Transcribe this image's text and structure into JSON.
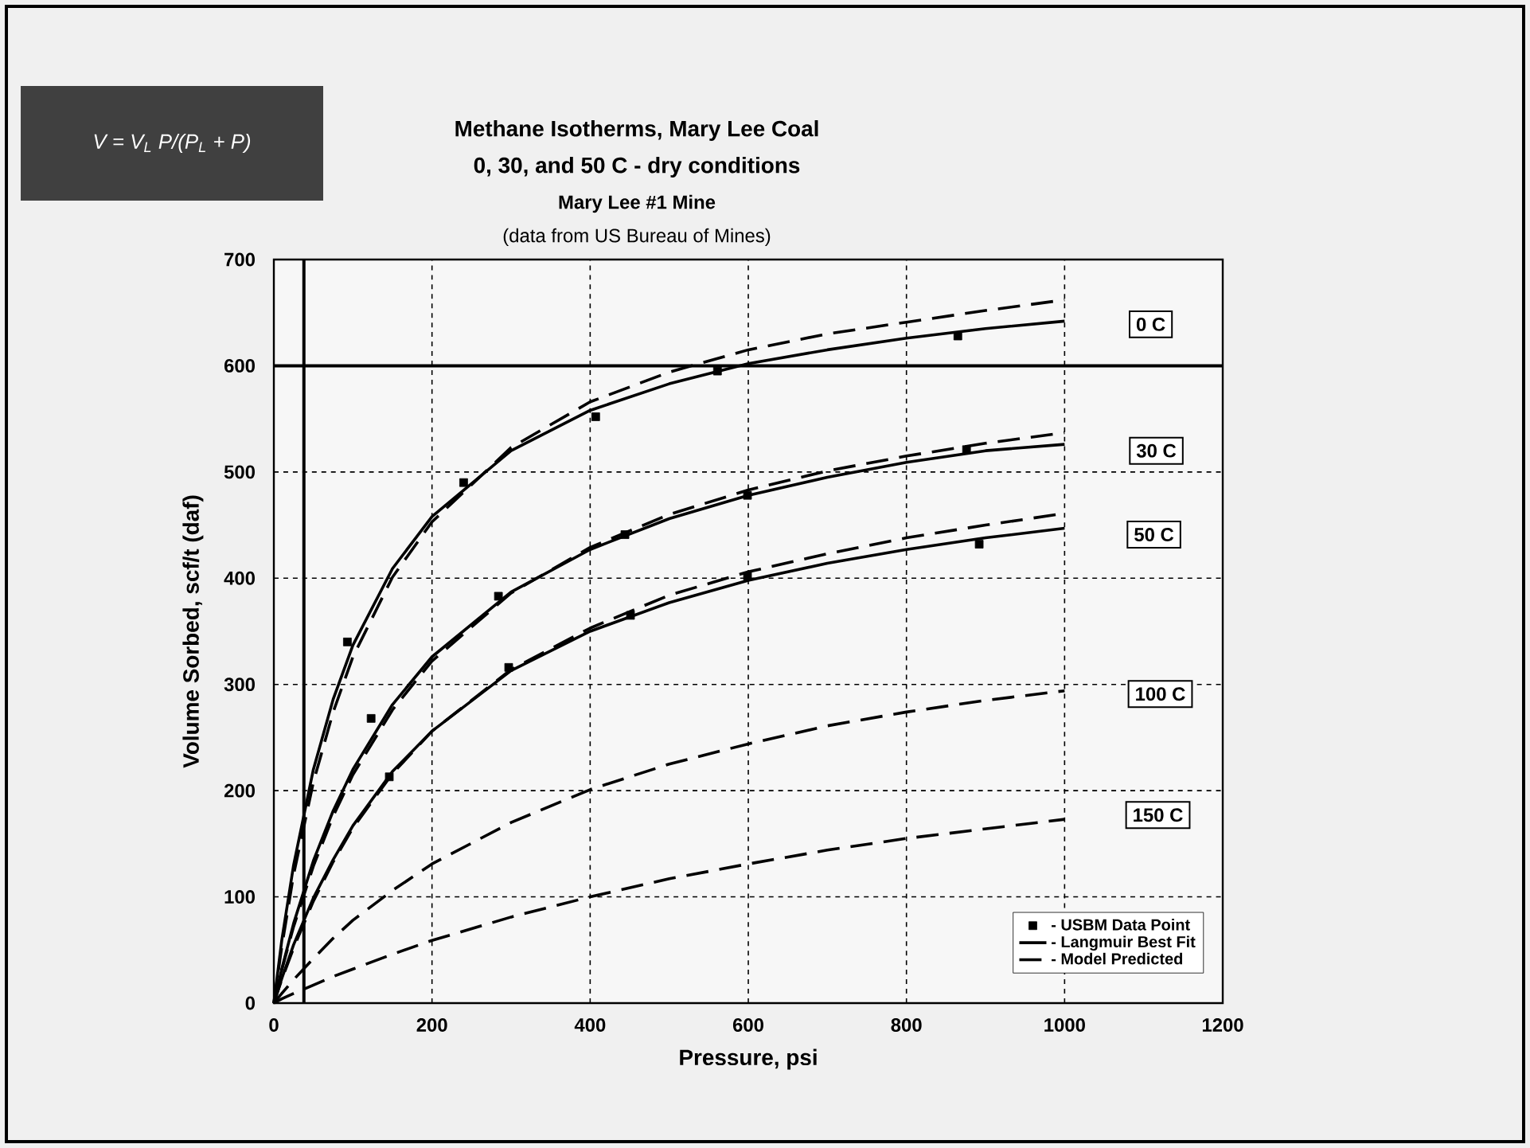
{
  "chart_data": {
    "type": "line",
    "title": "Methane Isotherms, Mary Lee Coal",
    "subtitle": "0, 30, and 50 C - dry conditions",
    "xlabel": "Pressure, psi",
    "ylabel": "Volume Sorbed, scf/t (daf)",
    "annotations": [
      "V = V$_{L}$ P/(P$_{L}$ + P)",
      "Mary Lee #1 Mine",
      "(data from US Bureau of Mines)",
      {
        "text": "0 C",
        "x": 1109,
        "y": 639
      },
      {
        "text": "30 C",
        "x": 1116,
        "y": 520
      },
      {
        "text": "50 C",
        "x": 1113,
        "y": 441
      },
      {
        "text": "100 C",
        "x": 1121,
        "y": 291
      },
      {
        "text": "150 C",
        "x": 1118,
        "y": 177
      }
    ],
    "xlim": [
      0,
      1200
    ],
    "ylim": [
      0,
      700
    ],
    "xticks": [
      0,
      200,
      400,
      600,
      800,
      1000,
      1200
    ],
    "yticks": [
      0,
      100,
      200,
      300,
      400,
      500,
      600,
      700
    ],
    "grid": true,
    "legend": "bottom right",
    "series": [
      {
        "name": "- USBM Data Point",
        "type": "scatter",
        "marker": "square",
        "color": "#000000",
        "x": [
          93,
          240,
          407,
          561,
          865
        ],
        "values": [
          340,
          490,
          552,
          595,
          628
        ]
      },
      {
        "type": "scatter",
        "marker": "square",
        "color": "#000000",
        "x": [
          123,
          284,
          444,
          599,
          876
        ],
        "values": [
          268,
          383,
          441,
          478,
          521
        ]
      },
      {
        "type": "scatter",
        "marker": "square",
        "color": "#000000",
        "x": [
          146,
          297,
          451,
          599,
          892
        ],
        "values": [
          213,
          316,
          365,
          402,
          432
        ]
      },
      {
        "name": "- Langmuir Best Fit",
        "type": "line",
        "line_style": "solid",
        "color": "#000000",
        "x": [
          0,
          10,
          25,
          50,
          75,
          100,
          150,
          200,
          300,
          400,
          500,
          600,
          700,
          800,
          900,
          1000
        ],
        "values": [
          0,
          59,
          130,
          220,
          286,
          337,
          409,
          458,
          520,
          558,
          583,
          602,
          615,
          626,
          635,
          642
        ]
      },
      {
        "type": "line",
        "line_style": "solid",
        "color": "#000000",
        "x": [
          0,
          10,
          25,
          50,
          75,
          100,
          150,
          200,
          300,
          400,
          500,
          600,
          700,
          800,
          900,
          1000
        ],
        "values": [
          0,
          32,
          75,
          134,
          181,
          220,
          281,
          326,
          387,
          427,
          456,
          478,
          495,
          509,
          520,
          526
        ]
      },
      {
        "type": "line",
        "line_style": "solid",
        "color": "#000000",
        "x": [
          0,
          10,
          25,
          50,
          75,
          100,
          150,
          200,
          300,
          400,
          500,
          600,
          700,
          800,
          900,
          1000
        ],
        "values": [
          0,
          23,
          55,
          99,
          135,
          167,
          218,
          256,
          313,
          350,
          377,
          398,
          414,
          427,
          438,
          447
        ]
      },
      {
        "name": "- Model Predicted",
        "type": "line",
        "line_style": "dashed",
        "color": "#000000",
        "x": [
          0,
          10,
          25,
          50,
          75,
          100,
          150,
          200,
          300,
          400,
          500,
          600,
          700,
          800,
          900,
          1000
        ],
        "values": [
          0,
          53,
          121,
          208,
          274,
          326,
          401,
          453,
          523,
          566,
          594,
          615,
          630,
          641,
          652,
          662
        ]
      },
      {
        "type": "line",
        "line_style": "dashed",
        "color": "#000000",
        "x": [
          0,
          10,
          25,
          50,
          75,
          100,
          150,
          200,
          300,
          400,
          500,
          600,
          700,
          800,
          900,
          1000
        ],
        "values": [
          0,
          31,
          72,
          129,
          176,
          215,
          276,
          322,
          386,
          429,
          460,
          483,
          501,
          515,
          527,
          537
        ]
      },
      {
        "type": "line",
        "line_style": "dashed",
        "color": "#000000",
        "x": [
          0,
          10,
          25,
          50,
          75,
          100,
          150,
          200,
          300,
          400,
          500,
          600,
          700,
          800,
          900,
          1000
        ],
        "values": [
          0,
          22,
          52,
          96,
          133,
          165,
          216,
          256,
          314,
          353,
          384,
          406,
          423,
          438,
          450,
          461
        ]
      },
      {
        "type": "line",
        "line_style": "dashed",
        "color": "#000000",
        "x": [
          0,
          10,
          25,
          50,
          75,
          100,
          150,
          200,
          300,
          400,
          500,
          600,
          700,
          800,
          900,
          1000
        ],
        "values": [
          0,
          9,
          22,
          42,
          61,
          78,
          106,
          131,
          170,
          201,
          225,
          244,
          261,
          274,
          285,
          294
        ]
      },
      {
        "type": "line",
        "line_style": "dashed",
        "color": "#000000",
        "x": [
          0,
          10,
          25,
          50,
          75,
          100,
          150,
          200,
          300,
          400,
          500,
          600,
          700,
          800,
          900,
          1000
        ],
        "values": [
          0,
          4,
          9,
          17,
          25,
          32,
          46,
          59,
          81,
          100,
          117,
          131,
          144,
          155,
          164,
          173
        ]
      }
    ],
    "ref_lines": [
      {
        "axis": "x",
        "value": 38,
        "color": "#000000"
      },
      {
        "axis": "y",
        "value": 600,
        "color": "#000000"
      }
    ]
  }
}
